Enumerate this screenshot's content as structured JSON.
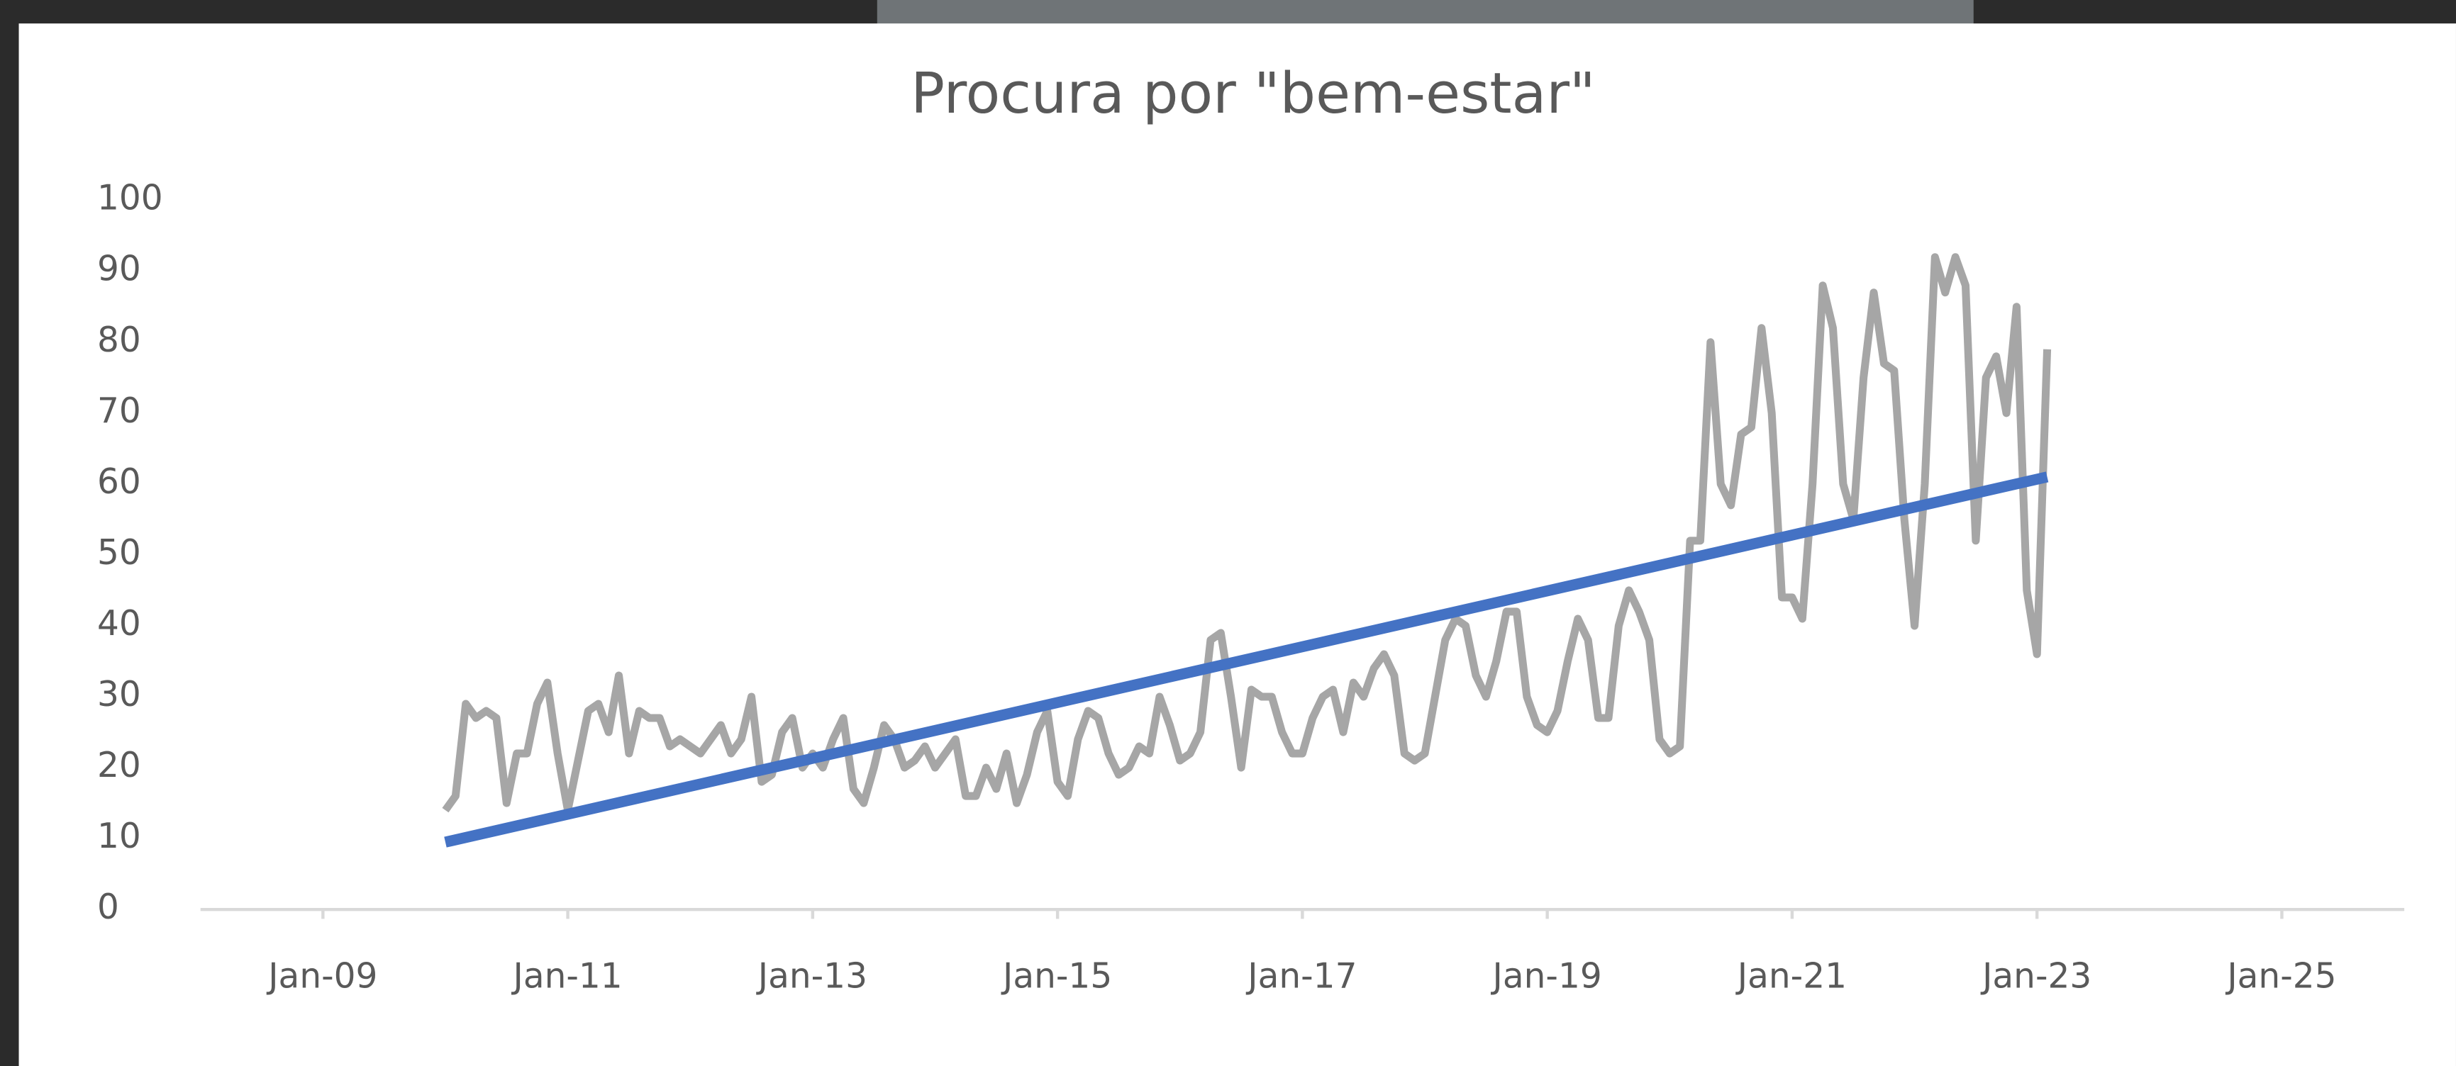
{
  "chart_data": {
    "type": "line",
    "title": "Procura por \"bem-estar\"",
    "xlim": [
      "2008-01",
      "2026-01"
    ],
    "xticks": [
      {
        "value": "2009-01",
        "label": "Jan-09"
      },
      {
        "value": "2011-01",
        "label": "Jan-11"
      },
      {
        "value": "2013-01",
        "label": "Jan-13"
      },
      {
        "value": "2015-01",
        "label": "Jan-15"
      },
      {
        "value": "2017-01",
        "label": "Jan-17"
      },
      {
        "value": "2019-01",
        "label": "Jan-19"
      },
      {
        "value": "2021-01",
        "label": "Jan-21"
      },
      {
        "value": "2023-01",
        "label": "Jan-23"
      },
      {
        "value": "2025-01",
        "label": "Jan-25"
      }
    ],
    "ylim": [
      0,
      100
    ],
    "yticks": [
      0,
      10,
      20,
      30,
      40,
      50,
      60,
      70,
      80,
      90,
      100
    ],
    "grid": false,
    "series": [
      {
        "color": "#a6a6a6",
        "x": [
          "2010-01",
          "2010-02",
          "2010-03",
          "2010-04",
          "2010-05",
          "2010-06",
          "2010-07",
          "2010-08",
          "2010-09",
          "2010-10",
          "2010-11",
          "2010-12",
          "2011-01",
          "2011-02",
          "2011-03",
          "2011-04",
          "2011-05",
          "2011-06",
          "2011-07",
          "2011-08",
          "2011-09",
          "2011-10",
          "2011-11",
          "2011-12",
          "2012-01",
          "2012-02",
          "2012-03",
          "2012-04",
          "2012-05",
          "2012-06",
          "2012-07",
          "2012-08",
          "2012-09",
          "2012-10",
          "2012-11",
          "2012-12",
          "2013-01",
          "2013-02",
          "2013-03",
          "2013-04",
          "2013-05",
          "2013-06",
          "2013-07",
          "2013-08",
          "2013-09",
          "2013-10",
          "2013-11",
          "2013-12",
          "2014-01",
          "2014-02",
          "2014-03",
          "2014-04",
          "2014-05",
          "2014-06",
          "2014-07",
          "2014-08",
          "2014-09",
          "2014-10",
          "2014-11",
          "2014-12",
          "2015-01",
          "2015-02",
          "2015-03",
          "2015-04",
          "2015-05",
          "2015-06",
          "2015-07",
          "2015-08",
          "2015-09",
          "2015-10",
          "2015-11",
          "2015-12",
          "2016-01",
          "2016-02",
          "2016-03",
          "2016-04",
          "2016-05",
          "2016-06",
          "2016-07",
          "2016-08",
          "2016-09",
          "2016-10",
          "2016-11",
          "2016-12",
          "2017-01",
          "2017-02",
          "2017-03",
          "2017-04",
          "2017-05",
          "2017-06",
          "2017-07",
          "2017-08",
          "2017-09",
          "2017-10",
          "2017-11",
          "2017-12",
          "2018-01",
          "2018-02",
          "2018-03",
          "2018-04",
          "2018-05",
          "2018-06",
          "2018-07",
          "2018-08",
          "2018-09",
          "2018-10",
          "2018-11",
          "2018-12",
          "2019-01",
          "2019-02",
          "2019-03",
          "2019-04",
          "2019-05",
          "2019-06",
          "2019-07",
          "2019-08",
          "2019-09",
          "2019-10",
          "2019-11",
          "2019-12",
          "2020-01",
          "2020-02",
          "2020-03",
          "2020-04",
          "2020-05",
          "2020-06",
          "2020-07",
          "2020-08",
          "2020-09",
          "2020-10",
          "2020-11",
          "2020-12",
          "2021-01",
          "2021-02",
          "2021-03",
          "2021-04",
          "2021-05",
          "2021-06",
          "2021-07",
          "2021-08",
          "2021-09",
          "2021-10",
          "2021-11",
          "2021-12",
          "2022-01",
          "2022-02",
          "2022-03",
          "2022-04",
          "2022-05",
          "2022-06",
          "2022-07",
          "2022-08",
          "2022-09",
          "2022-10",
          "2022-11",
          "2022-12",
          "2023-01",
          "2023-02"
        ],
        "values": [
          14,
          16,
          29,
          27,
          28,
          27,
          15,
          22,
          22,
          29,
          32,
          22,
          14,
          21,
          28,
          29,
          25,
          33,
          22,
          28,
          27,
          27,
          23,
          24,
          23,
          22,
          24,
          26,
          22,
          24,
          30,
          18,
          19,
          25,
          27,
          20,
          22,
          20,
          24,
          27,
          17,
          15,
          20,
          26,
          24,
          20,
          21,
          23,
          20,
          22,
          24,
          16,
          16,
          20,
          17,
          22,
          15,
          19,
          25,
          28,
          18,
          16,
          24,
          28,
          27,
          22,
          19,
          20,
          23,
          22,
          30,
          26,
          21,
          22,
          25,
          38,
          39,
          30,
          20,
          31,
          30,
          30,
          25,
          22,
          22,
          27,
          30,
          31,
          25,
          32,
          30,
          34,
          36,
          33,
          22,
          21,
          22,
          30,
          38,
          41,
          40,
          33,
          30,
          35,
          42,
          42,
          30,
          26,
          25,
          28,
          35,
          41,
          38,
          27,
          27,
          40,
          45,
          42,
          38,
          24,
          22,
          23,
          52,
          52,
          80,
          60,
          57,
          67,
          68,
          82,
          70,
          44,
          44,
          41,
          60,
          88,
          82,
          60,
          55,
          75,
          87,
          77,
          76,
          55,
          40,
          60,
          92,
          87,
          92,
          88,
          52,
          75,
          78,
          70,
          85,
          45,
          36,
          79
        ]
      },
      {
        "color": "#4472c4",
        "x": [
          "2010-01",
          "2023-02"
        ],
        "values": [
          9.5,
          61
        ]
      }
    ]
  }
}
